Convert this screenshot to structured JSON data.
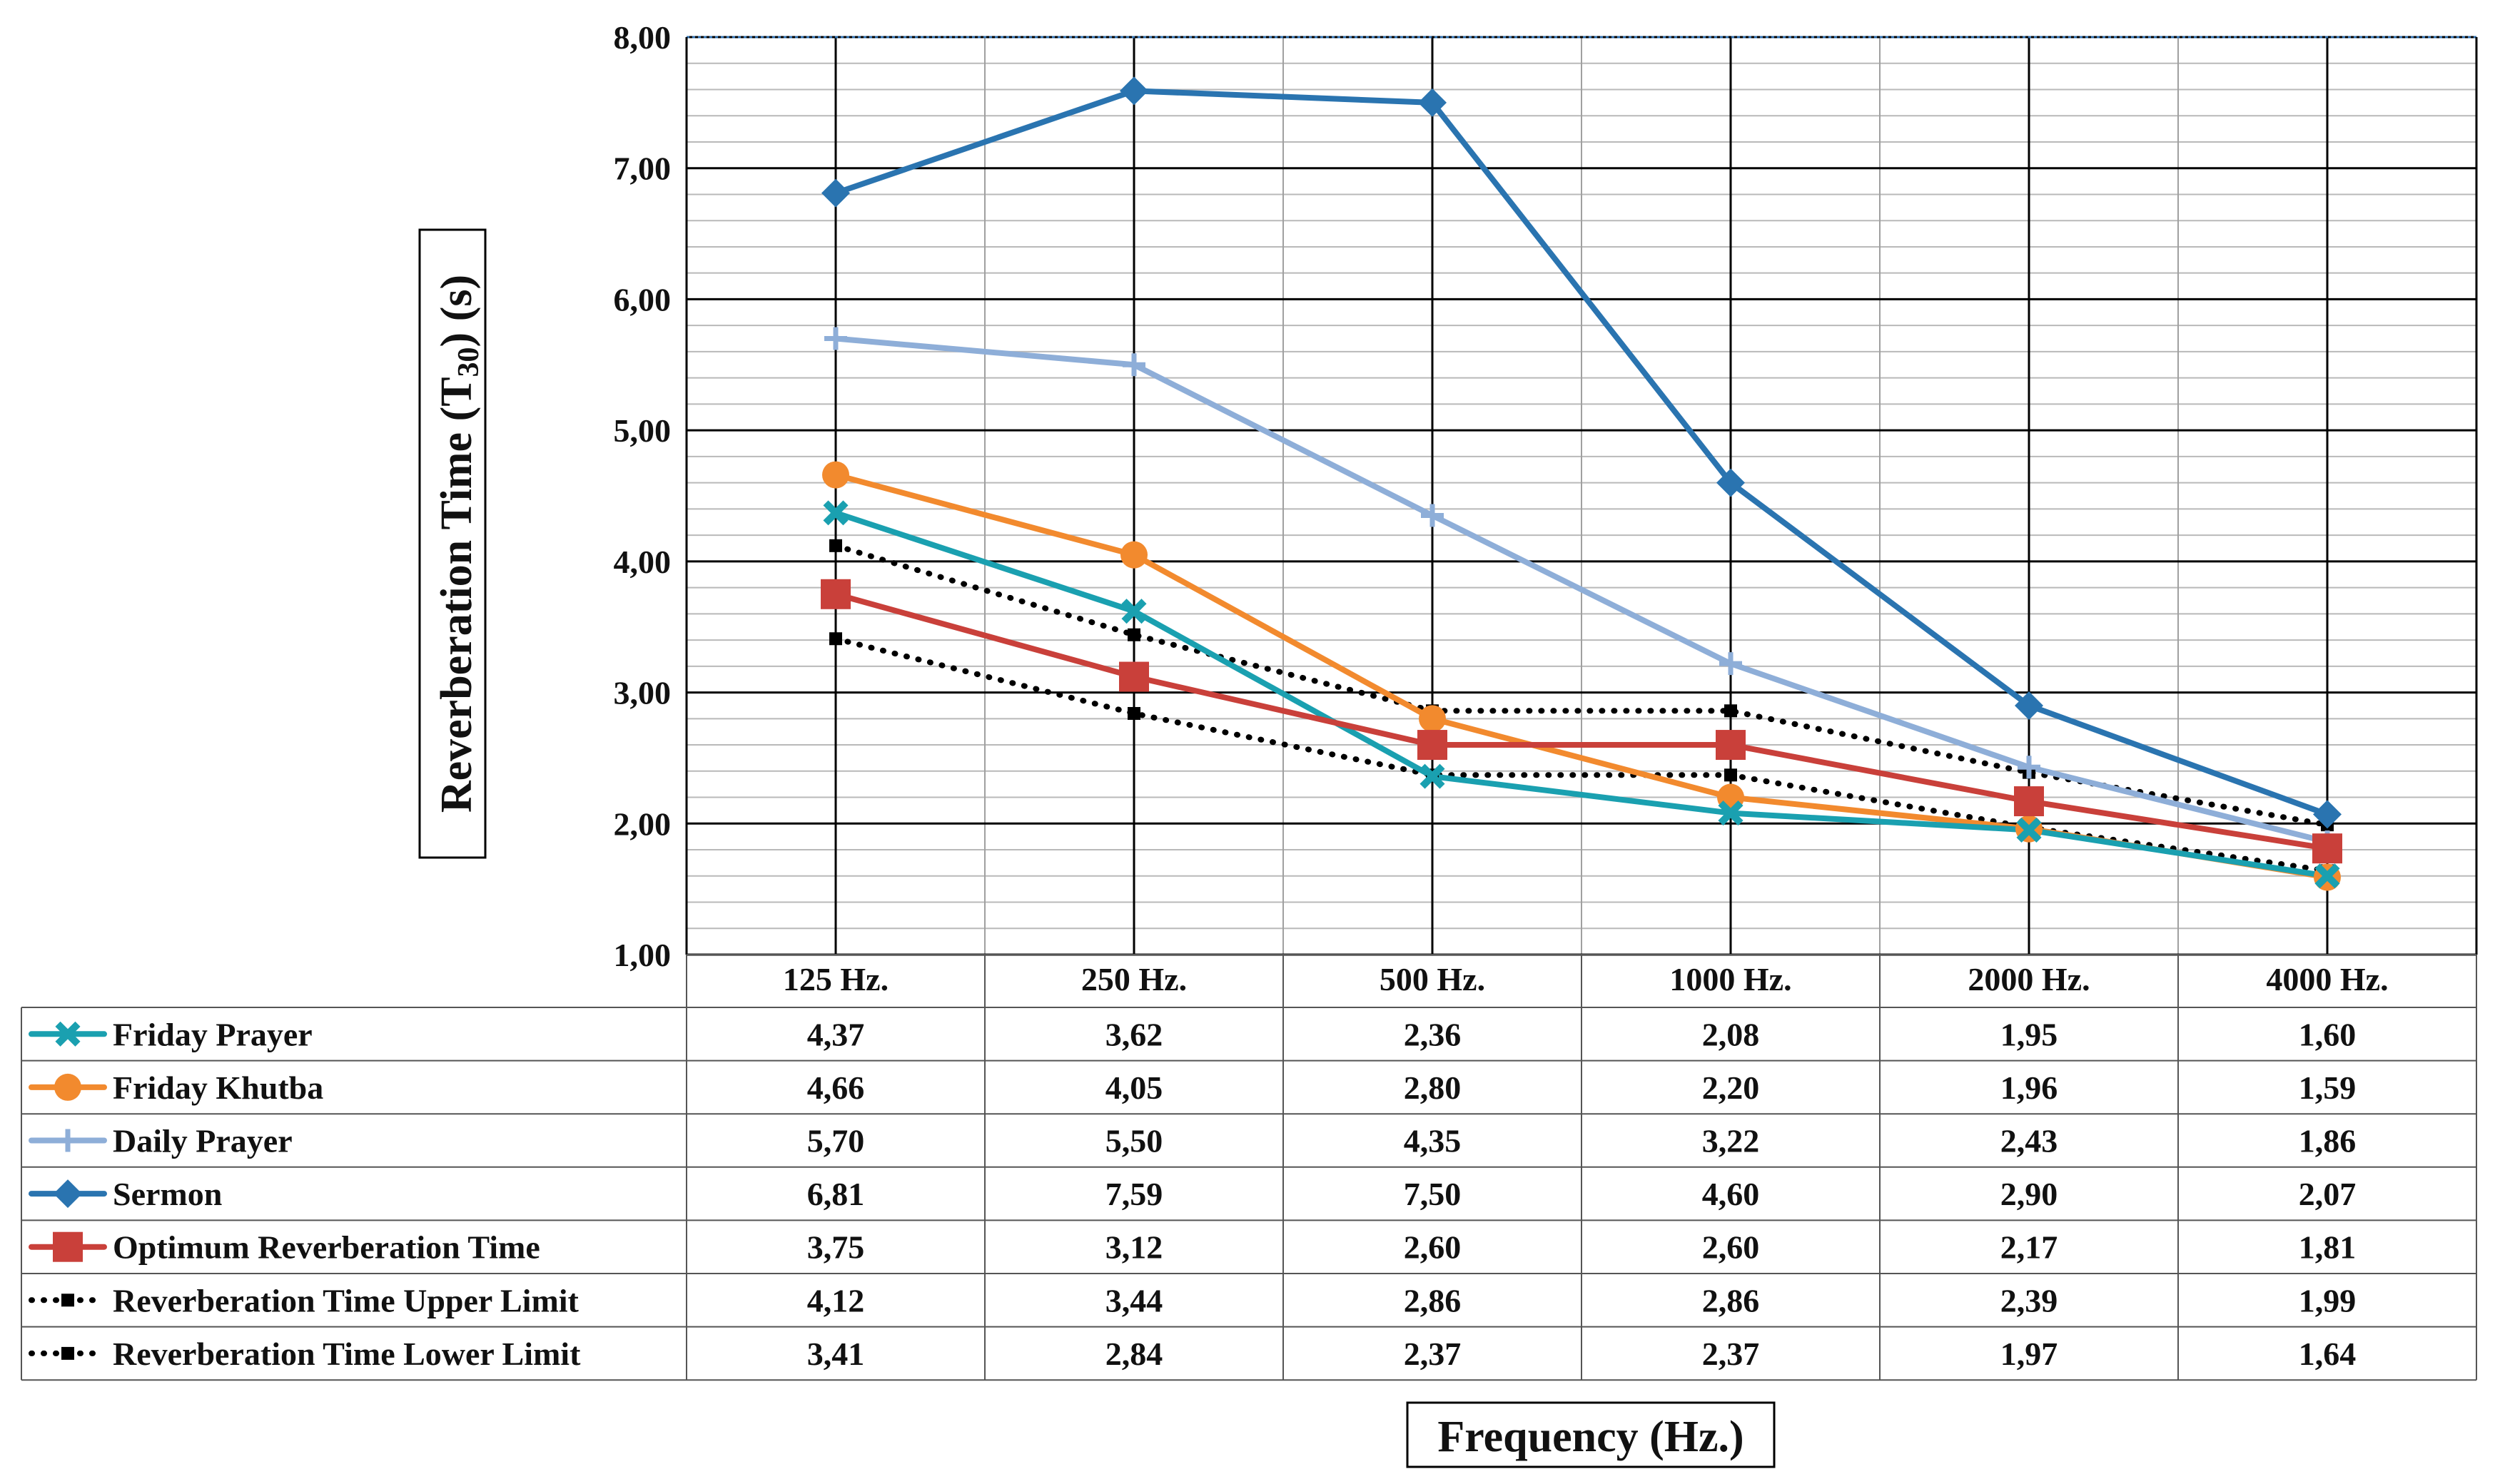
{
  "chart_data": {
    "type": "line",
    "title": "",
    "xlabel": "Frequency (Hz.)",
    "ylabel_prefix": "Reverberation Time (T",
    "ylabel_sub": "30",
    "ylabel_suffix": ") (s)",
    "ylim": [
      1.0,
      8.0
    ],
    "y_ticks": [
      1.0,
      2.0,
      3.0,
      4.0,
      5.0,
      6.0,
      7.0,
      8.0
    ],
    "y_tick_labels": [
      "1,00",
      "2,00",
      "3,00",
      "4,00",
      "5,00",
      "6,00",
      "7,00",
      "8,00"
    ],
    "grid": true,
    "categories": [
      "125 Hz.",
      "250 Hz.",
      "500 Hz.",
      "1000 Hz.",
      "2000 Hz.",
      "4000 Hz."
    ],
    "series": [
      {
        "name": "Friday Prayer",
        "color": "#1aa0b0",
        "marker": "x",
        "dash": "solid",
        "values": [
          4.37,
          3.62,
          2.36,
          2.08,
          1.95,
          1.6
        ],
        "labels": [
          "4,37",
          "3,62",
          "2,36",
          "2,08",
          "1,95",
          "1,60"
        ]
      },
      {
        "name": "Friday Khutba",
        "color": "#f28a2e",
        "marker": "circle",
        "dash": "solid",
        "values": [
          4.66,
          4.05,
          2.8,
          2.2,
          1.96,
          1.59
        ],
        "labels": [
          "4,66",
          "4,05",
          "2,80",
          "2,20",
          "1,96",
          "1,59"
        ]
      },
      {
        "name": "Daily Prayer",
        "color": "#8eaed8",
        "marker": "plus",
        "dash": "solid",
        "values": [
          5.7,
          5.5,
          4.35,
          3.22,
          2.43,
          1.86
        ],
        "labels": [
          "5,70",
          "5,50",
          "4,35",
          "3,22",
          "2,43",
          "1,86"
        ]
      },
      {
        "name": "Sermon",
        "color": "#2a74b0",
        "marker": "diamond",
        "dash": "solid",
        "values": [
          6.81,
          7.59,
          7.5,
          4.6,
          2.9,
          2.07
        ],
        "labels": [
          "6,81",
          "7,59",
          "7,50",
          "4,60",
          "2,90",
          "2,07"
        ]
      },
      {
        "name": "Optimum Reverberation Time",
        "color": "#c9403a",
        "marker": "square",
        "dash": "solid",
        "values": [
          3.75,
          3.12,
          2.6,
          2.6,
          2.17,
          1.81
        ],
        "labels": [
          "3,75",
          "3,12",
          "2,60",
          "2,60",
          "2,17",
          "1,81"
        ]
      },
      {
        "name": "Reverberation Time Upper Limit",
        "color": "#000000",
        "marker": "small-square",
        "dash": "dotted",
        "values": [
          4.12,
          3.44,
          2.86,
          2.86,
          2.39,
          1.99
        ],
        "labels": [
          "4,12",
          "3,44",
          "2,86",
          "2,86",
          "2,39",
          "1,99"
        ]
      },
      {
        "name": "Reverberation Time Lower Limit",
        "color": "#000000",
        "marker": "small-square",
        "dash": "dotted",
        "values": [
          3.41,
          2.84,
          2.37,
          2.37,
          1.97,
          1.64
        ],
        "labels": [
          "3,41",
          "2,84",
          "2,37",
          "2,37",
          "1,97",
          "1,64"
        ]
      }
    ]
  }
}
